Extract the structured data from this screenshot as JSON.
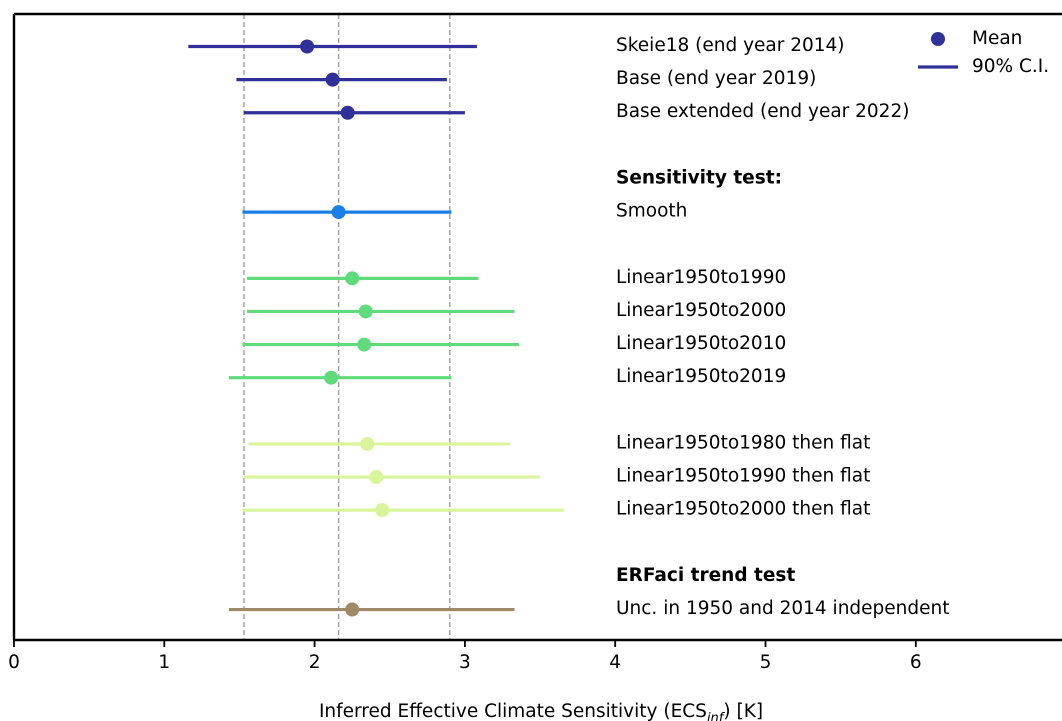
{
  "chart_data": {
    "type": "errorbar",
    "xlabel": {
      "prefix": "Inferred Effective Climate Sensitivity (ECS",
      "subscript": "inf",
      "suffix": ") [K]"
    },
    "xlim": [
      0,
      7
    ],
    "xticks": [
      "0",
      "1",
      "2",
      "3",
      "4",
      "5",
      "6"
    ],
    "reference_lines": [
      1.53,
      2.16,
      2.9
    ],
    "legend": {
      "mean_label": "Mean",
      "ci_label": "90% C.I.",
      "color": "#30309a"
    },
    "headers": [
      {
        "text": "Sensitivity test:",
        "row": 4
      },
      {
        "text": "ERFaci trend test",
        "row": 16
      }
    ],
    "series": [
      {
        "name": "Skeie18 (end year 2014)",
        "row": 0,
        "mean": 1.95,
        "low": 1.16,
        "high": 3.08,
        "color": "#30309a"
      },
      {
        "name": "Base (end year 2019)",
        "row": 1,
        "mean": 2.12,
        "low": 1.48,
        "high": 2.88,
        "color": "#30309a"
      },
      {
        "name": "Base extended (end year 2022)",
        "row": 2,
        "mean": 2.22,
        "low": 1.53,
        "high": 3.0,
        "color": "#30309a"
      },
      {
        "name": "Smooth",
        "row": 5,
        "mean": 2.16,
        "low": 1.52,
        "high": 2.91,
        "color": "#1a7fe6"
      },
      {
        "name": "Linear1950to1990",
        "row": 7,
        "mean": 2.25,
        "low": 1.55,
        "high": 3.09,
        "color": "#5fdb7c"
      },
      {
        "name": "Linear1950to2000",
        "row": 8,
        "mean": 2.34,
        "low": 1.55,
        "high": 3.33,
        "color": "#5fdb7c"
      },
      {
        "name": "Linear1950to2010",
        "row": 9,
        "mean": 2.33,
        "low": 1.52,
        "high": 3.36,
        "color": "#5fdb7c"
      },
      {
        "name": "Linear1950to2019",
        "row": 10,
        "mean": 2.11,
        "low": 1.43,
        "high": 2.91,
        "color": "#5fdb7c"
      },
      {
        "name": "Linear1950to1980 then flat",
        "row": 12,
        "mean": 2.35,
        "low": 1.56,
        "high": 3.3,
        "color": "#d8f59a"
      },
      {
        "name": "Linear1950to1990 then flat",
        "row": 13,
        "mean": 2.41,
        "low": 1.53,
        "high": 3.5,
        "color": "#d8f59a"
      },
      {
        "name": "Linear1950to2000 then flat",
        "row": 14,
        "mean": 2.45,
        "low": 1.52,
        "high": 3.66,
        "color": "#d8f59a"
      },
      {
        "name": "Unc. in 1950 and 2014 independent",
        "row": 17,
        "mean": 2.25,
        "low": 1.43,
        "high": 3.33,
        "color": "#a08868"
      }
    ]
  }
}
